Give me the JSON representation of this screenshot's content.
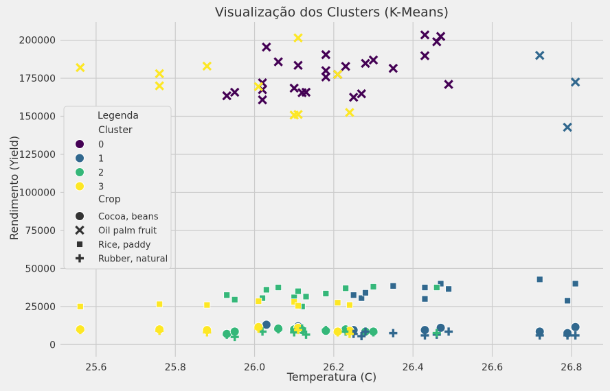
{
  "chart_data": {
    "type": "scatter",
    "title": "Visualização dos Clusters (K-Means)",
    "xlabel": "Temperatura (C)",
    "ylabel": "Rendimento (Yield)",
    "xlim": [
      25.51,
      26.88
    ],
    "ylim": [
      -8000,
      212000
    ],
    "xticks": [
      "25.6",
      "25.8",
      "26.0",
      "26.2",
      "26.4",
      "26.6",
      "26.8"
    ],
    "yticks": [
      "0",
      "25000",
      "50000",
      "75000",
      "100000",
      "125000",
      "150000",
      "175000",
      "200000"
    ],
    "grid": true,
    "legend": {
      "title": "Legenda",
      "position": "center-left",
      "hue_title": "Cluster",
      "clusters": [
        {
          "label": "0",
          "color": "#440154"
        },
        {
          "label": "1",
          "color": "#31688e"
        },
        {
          "label": "2",
          "color": "#35b779"
        },
        {
          "label": "3",
          "color": "#fde725"
        }
      ],
      "style_title": "Crop",
      "crops": [
        {
          "label": "Cocoa, beans",
          "marker": "circle"
        },
        {
          "label": "Oil palm fruit",
          "marker": "x"
        },
        {
          "label": "Rice, paddy",
          "marker": "square"
        },
        {
          "label": "Rubber, natural",
          "marker": "plus"
        }
      ]
    },
    "series": [
      {
        "cluster": "0",
        "crop": "Oil palm fruit",
        "x": [
          25.93,
          25.95,
          26.02,
          26.02,
          26.02,
          26.03,
          26.06,
          26.1,
          26.11,
          26.12,
          26.13,
          26.18,
          26.18,
          26.18,
          26.21,
          26.23,
          26.25,
          26.27,
          26.28,
          26.3,
          26.35,
          26.43,
          26.43,
          26.46,
          26.47,
          26.49
        ],
        "y": [
          163500,
          165800,
          172000,
          167500,
          160800,
          195500,
          185800,
          168500,
          183500,
          165500,
          165800,
          190500,
          180000,
          175800,
          177500,
          182800,
          162500,
          164800,
          184800,
          187000,
          181500,
          203500,
          189800,
          199000,
          202500,
          171000
        ]
      },
      {
        "cluster": "1",
        "crop": "Oil palm fruit",
        "x": [
          26.72,
          26.79,
          26.81
        ],
        "y": [
          190000,
          142800,
          172500
        ]
      },
      {
        "cluster": "3",
        "crop": "Oil palm fruit",
        "x": [
          25.56,
          25.76,
          25.76,
          25.88,
          26.01,
          26.1,
          26.11,
          26.11,
          26.21,
          26.24
        ],
        "y": [
          182000,
          178000,
          170000,
          183000,
          169500,
          150800,
          151200,
          201500,
          177500,
          152500
        ]
      },
      {
        "cluster": "1",
        "crop": "Rice, paddy",
        "x": [
          26.25,
          26.27,
          26.28,
          26.35,
          26.43,
          26.43,
          26.47,
          26.49,
          26.72,
          26.79,
          26.81
        ],
        "y": [
          32500,
          30500,
          34000,
          38500,
          37500,
          30000,
          40000,
          36500,
          42800,
          28800,
          40000
        ]
      },
      {
        "cluster": "2",
        "crop": "Rice, paddy",
        "x": [
          25.93,
          25.95,
          26.02,
          26.03,
          26.06,
          26.1,
          26.11,
          26.12,
          26.13,
          26.18,
          26.23,
          26.3,
          26.46
        ],
        "y": [
          32500,
          29500,
          30500,
          36000,
          37500,
          31000,
          35000,
          25000,
          31500,
          33500,
          37000,
          38000,
          37500
        ]
      },
      {
        "cluster": "3",
        "crop": "Rice, paddy",
        "x": [
          25.56,
          25.76,
          25.88,
          26.01,
          26.1,
          26.11,
          26.21,
          26.24
        ],
        "y": [
          25000,
          26500,
          26000,
          28500,
          28000,
          25500,
          27500,
          26000
        ]
      },
      {
        "cluster": "1",
        "crop": "Cocoa, beans",
        "x": [
          26.03,
          26.11,
          26.25,
          26.43,
          26.47,
          26.72,
          26.79,
          26.81
        ],
        "y": [
          13000,
          12000,
          9500,
          9500,
          11000,
          8500,
          7500,
          11500
        ]
      },
      {
        "cluster": "2",
        "crop": "Cocoa, beans",
        "x": [
          25.93,
          25.95,
          26.06,
          26.1,
          26.12,
          26.18,
          26.23,
          26.28,
          26.3
        ],
        "y": [
          7000,
          8500,
          10500,
          10000,
          9500,
          9000,
          10000,
          8500,
          8500
        ]
      },
      {
        "cluster": "3",
        "crop": "Cocoa, beans",
        "x": [
          25.56,
          25.76,
          25.88,
          26.01,
          26.11,
          26.21,
          26.24
        ],
        "y": [
          10000,
          10000,
          9500,
          11500,
          11000,
          8500,
          9000
        ]
      },
      {
        "cluster": "1",
        "crop": "Rubber, natural",
        "x": [
          26.25,
          26.27,
          26.28,
          26.35,
          26.43,
          26.46,
          26.49,
          26.72,
          26.79,
          26.81
        ],
        "y": [
          7000,
          5500,
          8500,
          7500,
          6000,
          6500,
          8500,
          6000,
          6000,
          6000
        ]
      },
      {
        "cluster": "2",
        "crop": "Rubber, natural",
        "x": [
          25.93,
          25.95,
          26.02,
          26.06,
          26.1,
          26.12,
          26.13,
          26.18,
          26.23,
          26.3,
          26.46
        ],
        "y": [
          6500,
          5000,
          8500,
          10000,
          8000,
          10500,
          6500,
          9500,
          8500,
          8000,
          7500
        ]
      },
      {
        "cluster": "3",
        "crop": "Rubber, natural",
        "x": [
          25.56,
          25.76,
          25.88,
          26.01,
          26.11,
          26.21,
          26.24
        ],
        "y": [
          9500,
          9000,
          8000,
          10500,
          9500,
          8000,
          7000
        ]
      }
    ]
  }
}
